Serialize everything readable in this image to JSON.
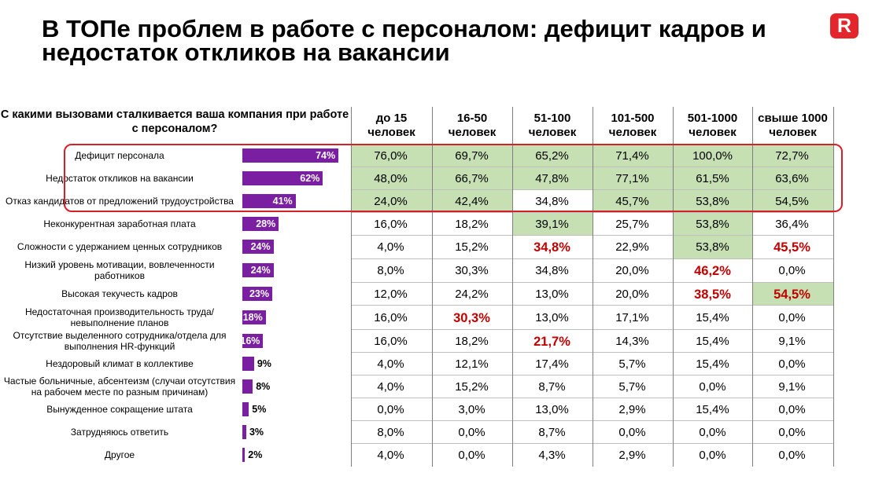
{
  "title": "В ТОПе проблем в работе с персоналом: дефицит кадров и недостаток откликов на вакансии",
  "logo_letter": "R",
  "colors": {
    "accent": "#e4262c",
    "bar": "#7b1fa2",
    "highlight_fill": "#c6e0b4",
    "red_text": "#c00000"
  },
  "chart_data": [
    {
      "type": "bar",
      "orientation": "horizontal",
      "title": "С какими вызовами сталкивается ваша компания при работе с персоналом?",
      "categories": [
        "Дефицит персонала",
        "Недостаток откликов на вакансии",
        "Отказ кандидатов от предложений трудоустройства",
        "Неконкурентная заработная плата",
        "Сложности с удержанием ценных сотрудников",
        "Низкий уровень мотивации, вовлеченности работников",
        "Высокая текучесть кадров",
        "Недостаточная производительность труда/невыполнение планов",
        "Отсутствие выделенного сотрудника/отдела для выполнения HR-функций",
        "Нездоровый климат в коллективе",
        "Частые больничные, абсентеизм (случаи отсутствия на рабочем месте по разным причинам)",
        "Вынужденное сокращение штата",
        "Затрудняюсь ответить",
        "Другое"
      ],
      "values": [
        74,
        62,
        41,
        28,
        24,
        24,
        23,
        18,
        16,
        9,
        8,
        5,
        3,
        2
      ],
      "value_labels": [
        "74%",
        "62%",
        "41%",
        "28%",
        "24%",
        "24%",
        "23%",
        "18%",
        "16%",
        "9%",
        "8%",
        "5%",
        "3%",
        "2%"
      ],
      "unit": "%"
    },
    {
      "type": "table",
      "columns": [
        "до 15 человек",
        "16-50 человек",
        "51-100 человек",
        "101-500 человек",
        "501-1000 человек",
        "свыше 1000 человек"
      ],
      "rows": [
        [
          "76,0%",
          "69,7%",
          "65,2%",
          "71,4%",
          "100,0%",
          "72,7%"
        ],
        [
          "48,0%",
          "66,7%",
          "47,8%",
          "77,1%",
          "61,5%",
          "63,6%"
        ],
        [
          "24,0%",
          "42,4%",
          "34,8%",
          "45,7%",
          "53,8%",
          "54,5%"
        ],
        [
          "16,0%",
          "18,2%",
          "39,1%",
          "25,7%",
          "53,8%",
          "36,4%"
        ],
        [
          "4,0%",
          "15,2%",
          "34,8%",
          "22,9%",
          "53,8%",
          "45,5%"
        ],
        [
          "8,0%",
          "30,3%",
          "34,8%",
          "20,0%",
          "46,2%",
          "0,0%"
        ],
        [
          "12,0%",
          "24,2%",
          "13,0%",
          "20,0%",
          "38,5%",
          "54,5%"
        ],
        [
          "16,0%",
          "30,3%",
          "13,0%",
          "17,1%",
          "15,4%",
          "0,0%"
        ],
        [
          "16,0%",
          "18,2%",
          "21,7%",
          "14,3%",
          "15,4%",
          "9,1%"
        ],
        [
          "4,0%",
          "12,1%",
          "17,4%",
          "5,7%",
          "15,4%",
          "0,0%"
        ],
        [
          "4,0%",
          "15,2%",
          "8,7%",
          "5,7%",
          "0,0%",
          "9,1%"
        ],
        [
          "0,0%",
          "3,0%",
          "13,0%",
          "2,9%",
          "15,4%",
          "0,0%"
        ],
        [
          "8,0%",
          "0,0%",
          "8,7%",
          "0,0%",
          "0,0%",
          "0,0%"
        ],
        [
          "4,0%",
          "0,0%",
          "4,3%",
          "2,9%",
          "0,0%",
          "0,0%"
        ]
      ],
      "green_cells": [
        [
          0,
          0
        ],
        [
          0,
          1
        ],
        [
          0,
          2
        ],
        [
          0,
          3
        ],
        [
          0,
          4
        ],
        [
          0,
          5
        ],
        [
          1,
          0
        ],
        [
          1,
          1
        ],
        [
          1,
          2
        ],
        [
          1,
          3
        ],
        [
          1,
          4
        ],
        [
          1,
          5
        ],
        [
          2,
          0
        ],
        [
          2,
          1
        ],
        [
          2,
          3
        ],
        [
          2,
          4
        ],
        [
          2,
          5
        ],
        [
          3,
          2
        ],
        [
          3,
          4
        ],
        [
          4,
          4
        ],
        [
          6,
          5
        ]
      ],
      "red_cells": [
        [
          4,
          2
        ],
        [
          4,
          5
        ],
        [
          5,
          4
        ],
        [
          6,
          4
        ],
        [
          6,
          5
        ],
        [
          7,
          1
        ],
        [
          8,
          2
        ]
      ]
    }
  ]
}
